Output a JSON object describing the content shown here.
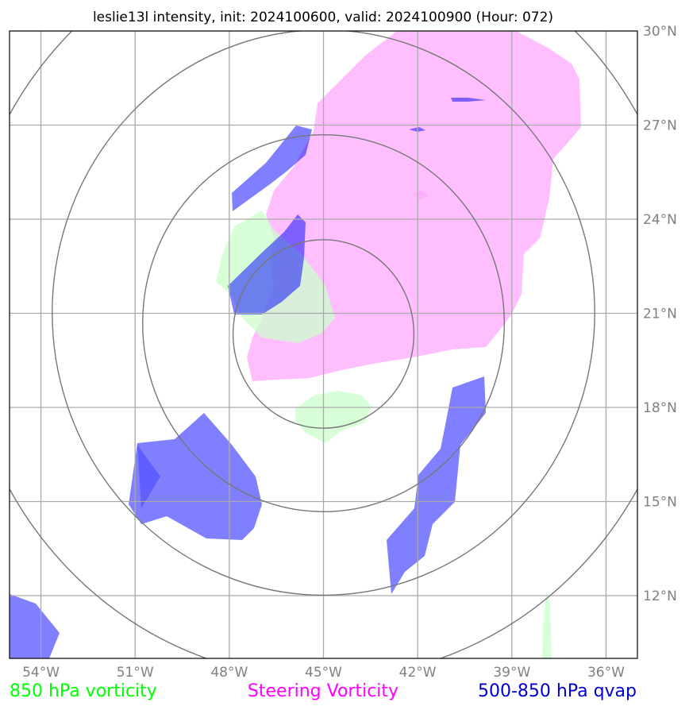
{
  "title": "leslie13l intensity, init: 2024100600, valid: 2024100900 (Hour: 072)",
  "legend": {
    "left": {
      "label": "850 hPa vorticity",
      "color": "#00ff00"
    },
    "center": {
      "label": "Steering Vorticity",
      "color": "#ff00ff"
    },
    "right": {
      "label": "500-850 hPa qvap",
      "color": "#0000cc"
    }
  },
  "map": {
    "lon_range": [
      -55.0,
      -35.0
    ],
    "lat_range": [
      10.0,
      30.0
    ],
    "lon_ticks": [
      {
        "value": -54,
        "label": "54°W"
      },
      {
        "value": -51,
        "label": "51°W"
      },
      {
        "value": -48,
        "label": "48°W"
      },
      {
        "value": -45,
        "label": "45°W"
      },
      {
        "value": -42,
        "label": "42°W"
      },
      {
        "value": -39,
        "label": "39°W"
      },
      {
        "value": -36,
        "label": "36°W"
      }
    ],
    "lat_ticks": [
      {
        "value": 12,
        "label": "12°N"
      },
      {
        "value": 15,
        "label": "15°N"
      },
      {
        "value": 18,
        "label": "18°N"
      },
      {
        "value": 21,
        "label": "21°N"
      },
      {
        "value": 24,
        "label": "24°N"
      },
      {
        "value": 27,
        "label": "27°N"
      },
      {
        "value": 30,
        "label": "30°N"
      }
    ],
    "grid": true,
    "center": {
      "lon": -45.0,
      "lat": 20.0
    },
    "range_rings_deg": [
      3,
      6,
      9,
      12
    ],
    "colors": {
      "vorticity_850": "#ccffcc",
      "steering_vorticity": "#ffaaff",
      "qvap": "#0000ff",
      "rings": "#777777",
      "grid": "#aaaaaa"
    }
  }
}
